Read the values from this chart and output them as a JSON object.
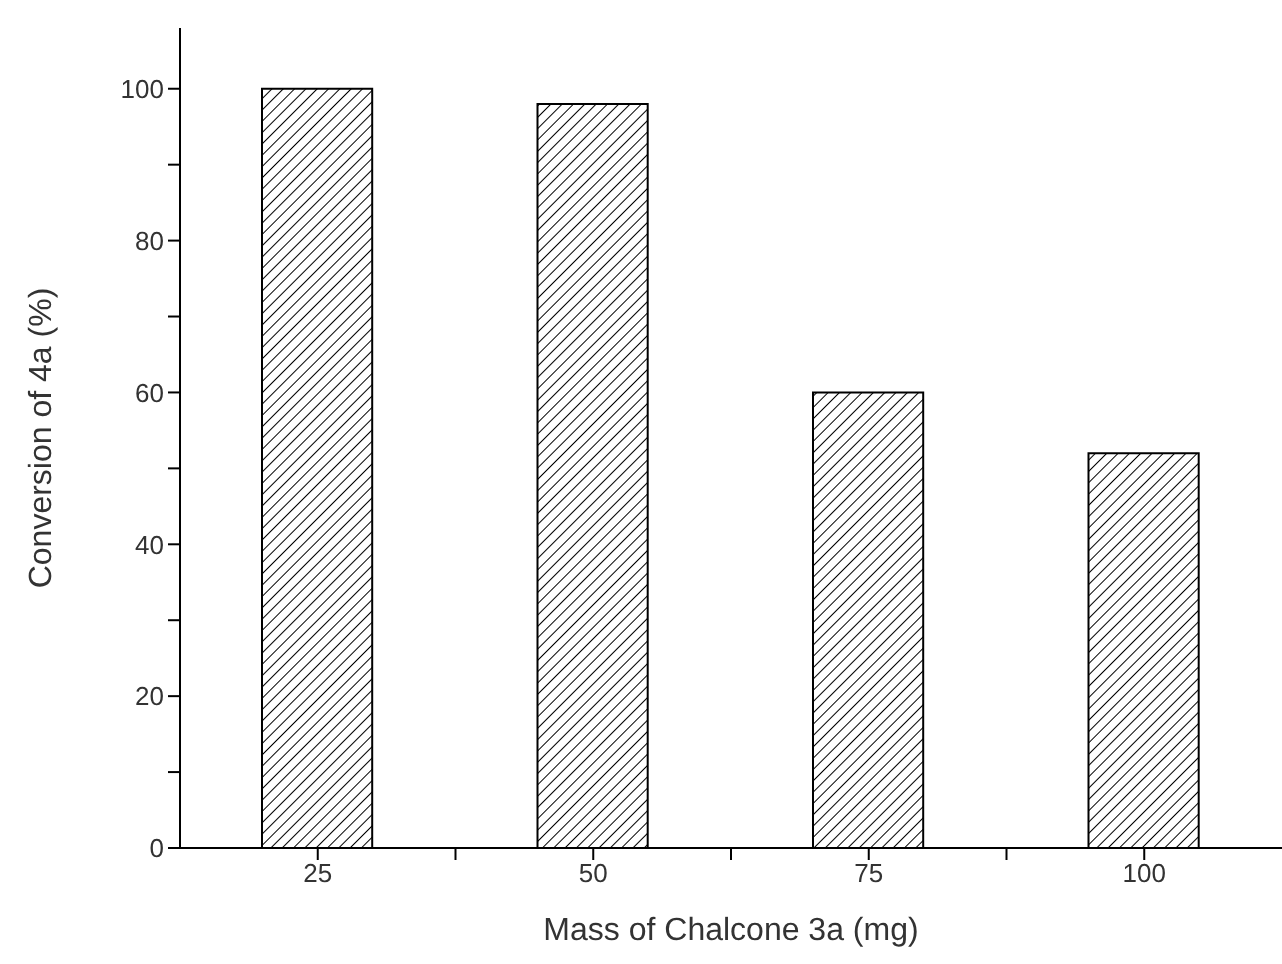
{
  "chart_data": {
    "type": "bar",
    "xlabel": "Mass of Chalcone 3a (mg)",
    "ylabel": "Conversion of 4a (%)",
    "x": [
      25,
      50,
      75,
      100
    ],
    "values": [
      100,
      98,
      60,
      52
    ],
    "color": "#000000",
    "xlim": [
      12.5,
      112.5
    ],
    "xticks": [
      25,
      {
        "value": 37.5,
        "label": null
      },
      50,
      {
        "value": 62.5,
        "label": null
      },
      75,
      {
        "value": 87.5,
        "label": null
      },
      100
    ],
    "ylim": [
      0,
      108
    ],
    "yticks": [
      0,
      {
        "value": 10,
        "label": null
      },
      20,
      {
        "value": 30,
        "label": null
      },
      40,
      {
        "value": 50,
        "label": null
      },
      60,
      {
        "value": 70,
        "label": null
      },
      80,
      {
        "value": 90,
        "label": null
      },
      100
    ],
    "grid": false,
    "legend": false
  }
}
